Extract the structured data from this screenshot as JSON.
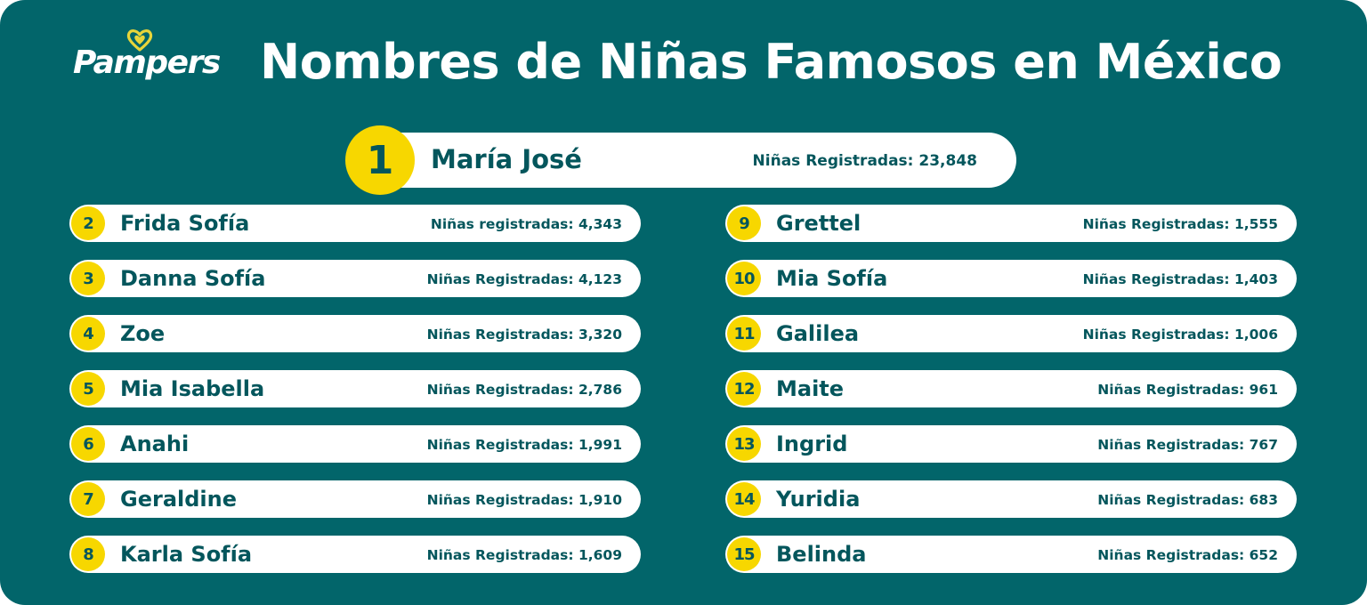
{
  "brand": {
    "logo_text": "Pampers",
    "logo_icon": "heart-icon",
    "logo_icon_color": "#e8d53a"
  },
  "title": "Nombres de Niñas Famosos en México",
  "colors": {
    "background": "#02656a",
    "pill": "#ffffff",
    "badge": "#f7d700",
    "text": "#04565c"
  },
  "top": {
    "rank": "1",
    "name": "María José",
    "count": "Niñas Registradas: 23,848"
  },
  "left_column": [
    {
      "rank": "2",
      "name": "Frida Sofía",
      "count": "Niñas registradas: 4,343"
    },
    {
      "rank": "3",
      "name": "Danna Sofía",
      "count": "Niñas Registradas: 4,123"
    },
    {
      "rank": "4",
      "name": "Zoe",
      "count": "Niñas Registradas: 3,320"
    },
    {
      "rank": "5",
      "name": "Mia Isabella",
      "count": "Niñas Registradas: 2,786"
    },
    {
      "rank": "6",
      "name": "Anahi",
      "count": "Niñas Registradas: 1,991"
    },
    {
      "rank": "7",
      "name": "Geraldine",
      "count": "Niñas Registradas: 1,910"
    },
    {
      "rank": "8",
      "name": "Karla Sofía",
      "count": "Niñas Registradas: 1,609"
    }
  ],
  "right_column": [
    {
      "rank": "9",
      "name": "Grettel",
      "count": "Niñas Registradas: 1,555"
    },
    {
      "rank": "10",
      "name": "Mia Sofía",
      "count": "Niñas Registradas: 1,403"
    },
    {
      "rank": "11",
      "name": "Galilea",
      "count": "Niñas Registradas: 1,006"
    },
    {
      "rank": "12",
      "name": "Maite",
      "count": "Niñas Registradas: 961"
    },
    {
      "rank": "13",
      "name": "Ingrid",
      "count": "Niñas Registradas: 767"
    },
    {
      "rank": "14",
      "name": "Yuridia",
      "count": "Niñas Registradas: 683"
    },
    {
      "rank": "15",
      "name": "Belinda",
      "count": "Niñas Registradas: 652"
    }
  ]
}
